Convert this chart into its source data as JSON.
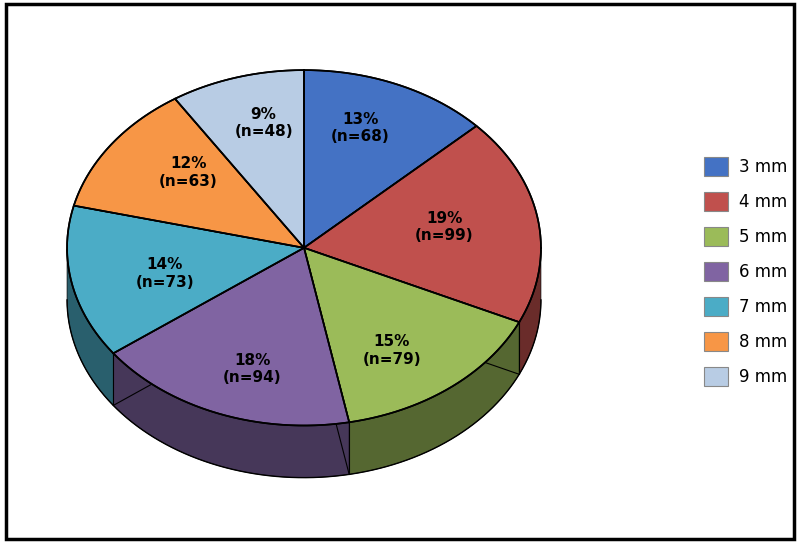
{
  "labels": [
    "3 mm",
    "4 mm",
    "5 mm",
    "6 mm",
    "7 mm",
    "8 mm",
    "9 mm"
  ],
  "values": [
    68,
    99,
    79,
    94,
    73,
    63,
    48
  ],
  "percentages": [
    13,
    19,
    15,
    18,
    14,
    12,
    9
  ],
  "n_labels": [
    "n=68",
    "n=99",
    "n=79",
    "n=94",
    "n=73",
    "n=63",
    "n=48"
  ],
  "colors": [
    "#4472C4",
    "#C0504D",
    "#9BBB59",
    "#8064A2",
    "#4BACC6",
    "#F79646",
    "#B8CCE4"
  ],
  "background_color": "#FFFFFF",
  "legend_labels": [
    "3 mm",
    "4 mm",
    "5 mm",
    "6 mm",
    "7 mm",
    "8 mm",
    "9 mm"
  ],
  "startangle": 90,
  "figsize": [
    8.0,
    5.43
  ],
  "label_fontsize": 11,
  "legend_fontsize": 12
}
